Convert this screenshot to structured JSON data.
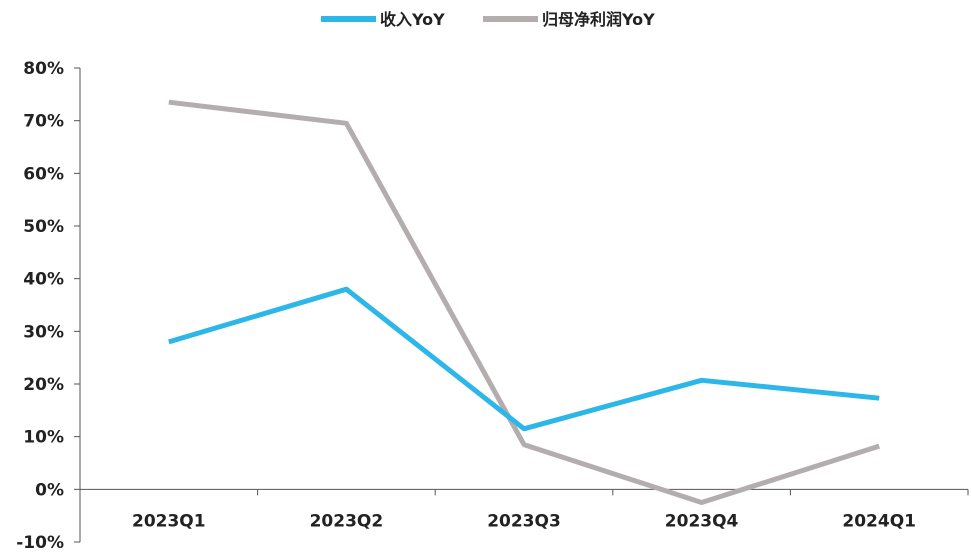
{
  "chart_data": {
    "type": "line",
    "title": "",
    "xlabel": "",
    "ylabel": "",
    "categories": [
      "2023Q1",
      "2023Q2",
      "2023Q3",
      "2023Q4",
      "2024Q1"
    ],
    "series": [
      {
        "name": "收入YoY",
        "color": "#2DB7E8",
        "values": [
          28,
          38,
          11.5,
          20.7,
          17.3
        ]
      },
      {
        "name": "归母净利润YoY",
        "color": "#B3ADAD",
        "values": [
          73.5,
          69.5,
          8.5,
          -2.5,
          8.2
        ]
      }
    ],
    "ylim": [
      -10,
      80
    ],
    "yticks": [
      -10,
      0,
      10,
      20,
      30,
      40,
      50,
      60,
      70,
      80
    ],
    "ytick_labels": [
      "-10%",
      "0%",
      "10%",
      "20%",
      "30%",
      "40%",
      "50%",
      "60%",
      "70%",
      "80%"
    ],
    "grid": false,
    "legend_position": "top-center",
    "axis_color": "#555555"
  }
}
